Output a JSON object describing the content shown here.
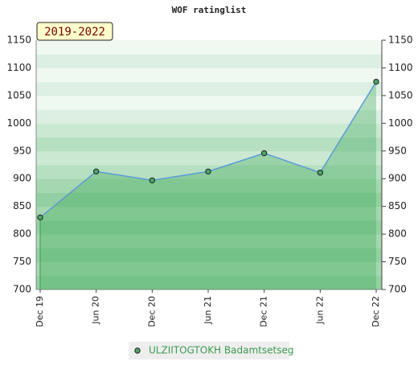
{
  "chart_data": {
    "type": "area",
    "title": "WOF ratinglist",
    "annotation": "2019-2022",
    "categories": [
      "Dec 19",
      "Jun 20",
      "Dec 20",
      "Jun 21",
      "Dec 21",
      "Jun 22",
      "Dec 22"
    ],
    "series": [
      {
        "name": "ULZIITOGTOKH Badamtsetseg",
        "color": "#5b9bd5",
        "values": [
          830,
          913,
          897,
          913,
          946,
          911,
          1075
        ]
      }
    ],
    "ylim": [
      700,
      1150
    ],
    "yticks": [
      700,
      750,
      800,
      850,
      900,
      950,
      1000,
      1050,
      1100,
      1150
    ],
    "grid": true,
    "legend": "bottom"
  }
}
